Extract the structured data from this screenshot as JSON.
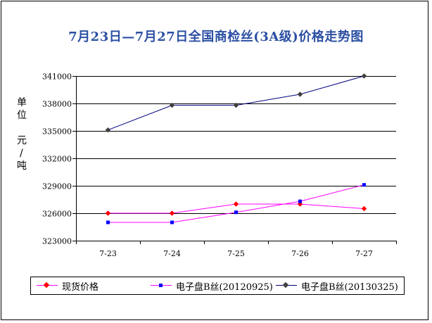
{
  "chart_data": {
    "type": "line",
    "title": "7月23日—7月27日全国商检丝(3A级)价格走势图",
    "ylabel_chars": [
      "单",
      "位",
      "元",
      "/",
      "吨"
    ],
    "categories": [
      "7-23",
      "7-24",
      "7-25",
      "7-26",
      "7-27"
    ],
    "ylim": [
      323000,
      341000
    ],
    "yticks": [
      323000,
      326000,
      329000,
      332000,
      335000,
      338000,
      341000
    ],
    "ytick_labels": [
      "323000",
      "326000",
      "329000",
      "332000",
      "335000",
      "338000",
      "341000"
    ],
    "grid": true,
    "legend_position": "bottom",
    "series": [
      {
        "name": "现货价格",
        "values": [
          326000,
          326000,
          327000,
          327000,
          326500
        ],
        "color": "#FF00FF",
        "marker": "diamond",
        "marker_color": "#FF0000"
      },
      {
        "name": "电子盘B丝(20120925)",
        "values": [
          325000,
          325000,
          326100,
          327300,
          329100
        ],
        "color": "#FF00FF",
        "marker": "square",
        "marker_color": "#0000FF"
      },
      {
        "name": "电子盘B丝(20130325)",
        "values": [
          335100,
          337800,
          337800,
          339000,
          341000
        ],
        "color": "#000080",
        "marker": "diamond",
        "marker_color": "#404040"
      }
    ]
  }
}
